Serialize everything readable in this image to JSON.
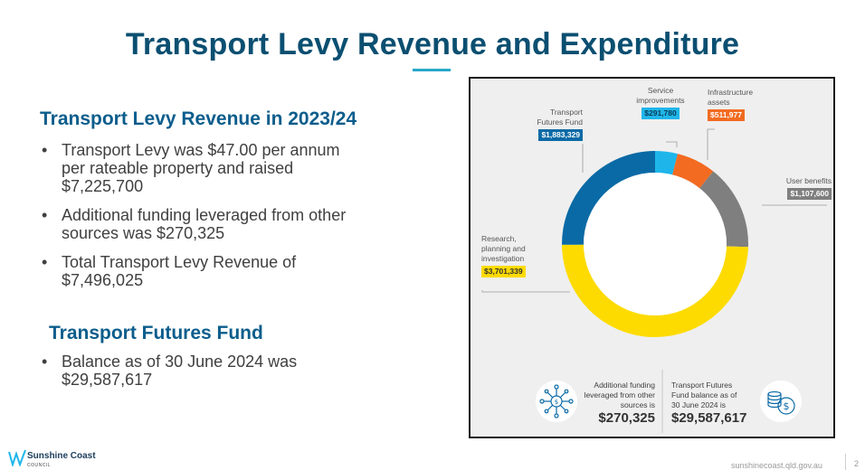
{
  "title": "Transport Levy Revenue and Expenditure",
  "section1": {
    "heading": "Transport Levy Revenue in 2023/24",
    "bullets": [
      "Transport Levy was $47.00 per annum per rateable property and raised $7,225,700",
      "Additional funding leveraged from other sources was $270,325",
      "Total Transport Levy Revenue of $7,496,025"
    ]
  },
  "section2": {
    "heading": "Transport Futures Fund",
    "bullets": [
      "Balance as of 30 June 2024 was $29,587,617"
    ]
  },
  "chart_data": {
    "type": "pie",
    "series": [
      {
        "label": "Service improvements",
        "value": 291780,
        "display": "$291,780",
        "color": "#1eb6ea"
      },
      {
        "label": "Infrastructure assets",
        "value": 511977,
        "display": "$511,977",
        "color": "#f26b21"
      },
      {
        "label": "User benefits",
        "value": 1107600,
        "display": "$1,107,600",
        "color": "#7f7f7f"
      },
      {
        "label": "Research, planning and investigation",
        "value": 3701339,
        "display": "$3,701,339",
        "color": "#fddb00"
      },
      {
        "label": "Transport Futures Fund",
        "value": 1883329,
        "display": "$1,883,329",
        "color": "#0a6aa6"
      }
    ]
  },
  "stats": {
    "additional": {
      "text": "Additional funding leveraged from other sources is",
      "value": "$270,325"
    },
    "fund": {
      "text": "Transport Futures Fund balance as of 30 June 2024 is",
      "value": "$29,587,617"
    }
  },
  "icons": {
    "network": "network-funding-icon",
    "coins": "coins-dollar-icon"
  },
  "footer": {
    "logo_name": "Sunshine Coast",
    "logo_sub": "COUNCIL",
    "url": "sunshinecoast.qld.gov.au",
    "page": "2"
  }
}
